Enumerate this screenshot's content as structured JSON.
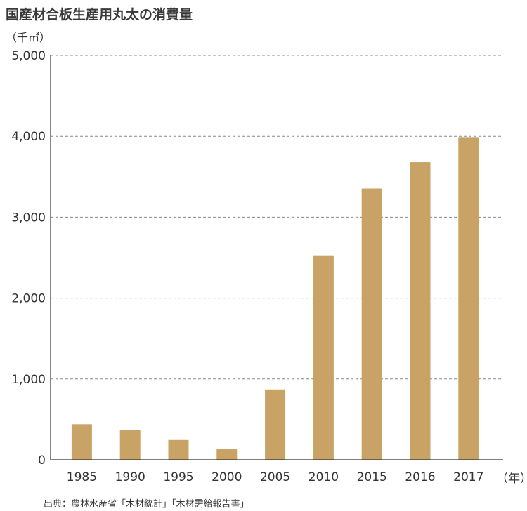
{
  "chart_data": {
    "type": "bar",
    "title": "国産材合板生産用丸太の消費量",
    "ylabel": "（千㎥）",
    "xlabel": "（年）",
    "categories": [
      "1985",
      "1990",
      "1995",
      "2000",
      "2005",
      "2010",
      "2015",
      "2016",
      "2017"
    ],
    "values": [
      440,
      370,
      245,
      130,
      870,
      2520,
      3355,
      3680,
      3990
    ],
    "ylim": [
      0,
      5000
    ],
    "yticks": [
      0,
      1000,
      2000,
      3000,
      4000,
      5000
    ],
    "ytick_labels": [
      "0",
      "1,000",
      "2,000",
      "3,000",
      "4,000",
      "5,000"
    ],
    "grid": true,
    "bar_color": "#c9a265",
    "grid_color": "#8a8a8a"
  },
  "source": "出典：農林水産省「木材統計」「木材需給報告書」"
}
